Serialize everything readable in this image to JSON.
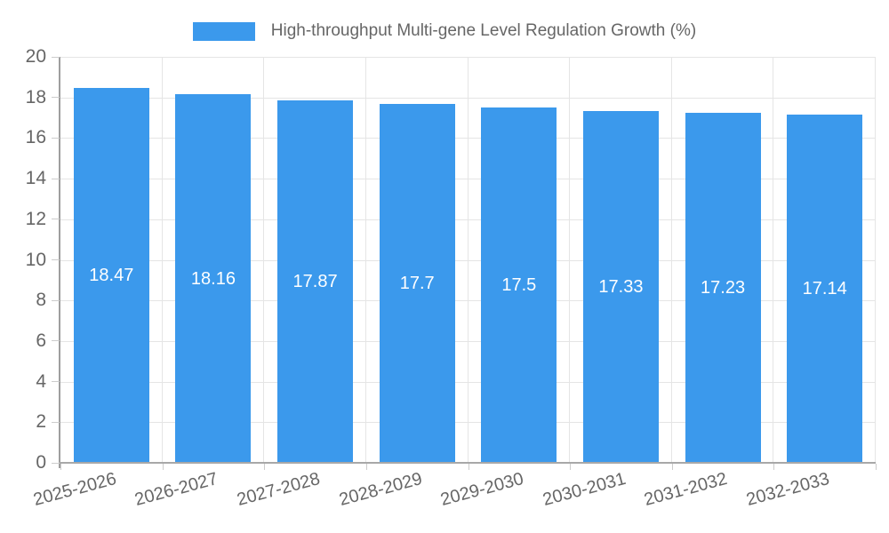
{
  "legend": {
    "label": "High-throughput Multi-gene Level Regulation Growth (%)"
  },
  "colors": {
    "bar": "#3b99ec",
    "grid": "#e5e5e5",
    "axis": "#9e9e9e",
    "tick_text": "#666666",
    "value_label": "#ffffff"
  },
  "chart_data": {
    "type": "bar",
    "title": "High-throughput Multi-gene Level Regulation Growth (%)",
    "categories": [
      "2025-2026",
      "2026-2027",
      "2027-2028",
      "2028-2029",
      "2029-2030",
      "2030-2031",
      "2031-2032",
      "2032-2033"
    ],
    "values": [
      18.47,
      18.16,
      17.87,
      17.7,
      17.5,
      17.33,
      17.23,
      17.14
    ],
    "value_labels": [
      "18.47",
      "18.16",
      "17.87",
      "17.7",
      "17.5",
      "17.33",
      "17.23",
      "17.14"
    ],
    "xlabel": "",
    "ylabel": "",
    "ylim": [
      0,
      20
    ],
    "yticks": [
      0,
      2,
      4,
      6,
      8,
      10,
      12,
      14,
      16,
      18,
      20
    ],
    "grid": true,
    "legend_position": "top"
  }
}
